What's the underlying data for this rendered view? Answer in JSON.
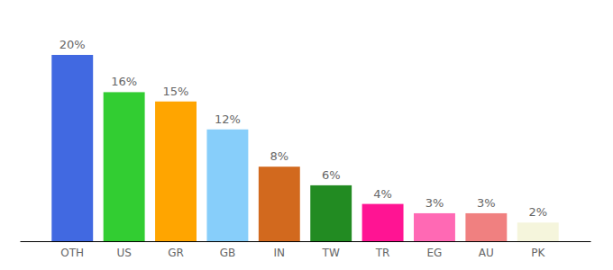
{
  "chart_data": {
    "type": "bar",
    "categories": [
      "OTH",
      "US",
      "GR",
      "GB",
      "IN",
      "TW",
      "TR",
      "EG",
      "AU",
      "PK"
    ],
    "values": [
      20,
      16,
      15,
      12,
      8,
      6,
      4,
      3,
      3,
      2
    ],
    "value_labels": [
      "20%",
      "16%",
      "15%",
      "12%",
      "8%",
      "6%",
      "4%",
      "3%",
      "3%",
      "2%"
    ],
    "colors": [
      "#4169e1",
      "#32cd32",
      "#ffa500",
      "#87cefa",
      "#d2691e",
      "#228b22",
      "#ff1493",
      "#ff69b4",
      "#f08080",
      "#f5f5dc"
    ],
    "ylim": [
      0,
      20
    ],
    "data_labels": true,
    "tick_labels": "x",
    "grid": false
  }
}
